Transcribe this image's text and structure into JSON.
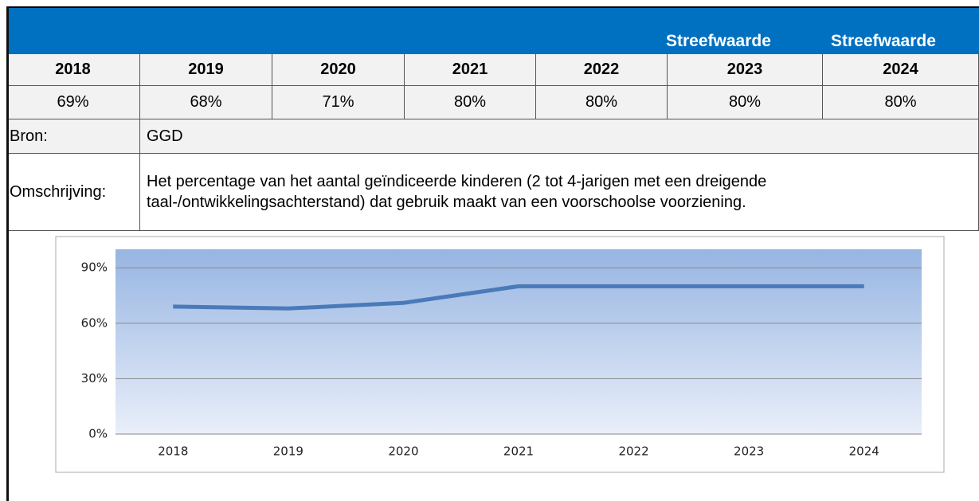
{
  "header": {
    "labels": [
      "Streefwaarde",
      "Streefwaarde"
    ]
  },
  "table": {
    "years": [
      "2018",
      "2019",
      "2020",
      "2021",
      "2022",
      "2023",
      "2024"
    ],
    "values": [
      "69%",
      "68%",
      "71%",
      "80%",
      "80%",
      "80%",
      "80%"
    ],
    "source_label": "Bron:",
    "source": "GGD",
    "description_label": "Omschrijving:",
    "description": "Het percentage van het aantal geïndiceerde kinderen (2 tot 4-jarigen met een dreigende taal-/ontwikkelingsachterstand) dat gebruik maakt van een voorschoolse voorziening."
  },
  "chart_data": {
    "type": "line",
    "categories": [
      "2018",
      "2019",
      "2020",
      "2021",
      "2022",
      "2023",
      "2024"
    ],
    "values": [
      69,
      68,
      71,
      80,
      80,
      80,
      80
    ],
    "color": "#4a7ab8",
    "ylim": [
      0,
      100
    ],
    "yticks": [
      {
        "value": 0,
        "label": "0%"
      },
      {
        "value": 30,
        "label": "30%"
      },
      {
        "value": 60,
        "label": "60%"
      },
      {
        "value": 90,
        "label": "90%"
      }
    ],
    "grid": true
  }
}
